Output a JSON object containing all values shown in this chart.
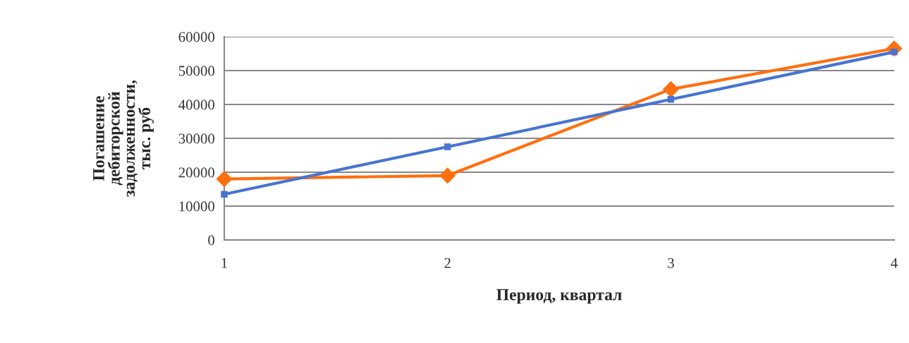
{
  "chart_data": {
    "type": "line",
    "xlabel": "Период, квартал",
    "ylabel": "Погашение\nдебиторской\nзадолженности,\nтыс. руб",
    "x": [
      1,
      2,
      3,
      4
    ],
    "xlim": [
      1,
      4
    ],
    "xticks": [
      1,
      2,
      3,
      4
    ],
    "ylim": [
      0,
      60000
    ],
    "yticks": [
      0,
      10000,
      20000,
      30000,
      40000,
      50000,
      60000
    ],
    "grid": "y",
    "line_style": "solid",
    "series": [
      {
        "color": "#ff6f0f",
        "values": [
          18000,
          19000,
          44500,
          56500
        ],
        "marker": "diamond"
      },
      {
        "color": "#4874d0",
        "values": [
          13500,
          27500,
          41500,
          55500
        ],
        "marker": "square"
      }
    ]
  }
}
